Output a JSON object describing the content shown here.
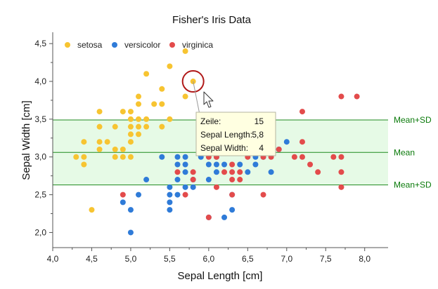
{
  "chart_data": {
    "type": "scatter",
    "title": "Fisher's Iris Data",
    "xlabel": "Sepal Length [cm]",
    "ylabel": "Sepal Width [cm]",
    "xlim": [
      4.0,
      8.3
    ],
    "ylim": [
      1.8,
      4.65
    ],
    "x_ticks": [
      "4,0",
      "4,5",
      "5,0",
      "5,5",
      "6,0",
      "6,5",
      "7,0",
      "7,5",
      "8,0"
    ],
    "x_tick_values": [
      4.0,
      4.5,
      5.0,
      5.5,
      6.0,
      6.5,
      7.0,
      7.5,
      8.0
    ],
    "y_ticks": [
      "2,0",
      "2,5",
      "3,0",
      "3,5",
      "4,0",
      "4,5"
    ],
    "y_tick_values": [
      2.0,
      2.5,
      3.0,
      3.5,
      4.0,
      4.5
    ],
    "grid": false,
    "legend_position": "top-left",
    "band": {
      "low": 2.63,
      "mean": 3.06,
      "high": 3.49,
      "fill": "#e6fae6",
      "line": "#1f8a1f"
    },
    "reference_lines": [
      {
        "label": "Mean+SD",
        "y": 3.49
      },
      {
        "label": "Mean",
        "y": 3.06
      },
      {
        "label": "Mean+SD",
        "y": 2.63
      }
    ],
    "series": [
      {
        "name": "setosa",
        "color": "#f7c431",
        "points": [
          [
            4.3,
            3.0
          ],
          [
            4.4,
            2.9
          ],
          [
            4.4,
            3.0
          ],
          [
            4.4,
            3.2
          ],
          [
            4.5,
            2.3
          ],
          [
            4.6,
            3.1
          ],
          [
            4.6,
            3.2
          ],
          [
            4.6,
            3.4
          ],
          [
            4.6,
            3.6
          ],
          [
            4.7,
            3.2
          ],
          [
            4.8,
            3.0
          ],
          [
            4.8,
            3.1
          ],
          [
            4.8,
            3.4
          ],
          [
            4.9,
            3.0
          ],
          [
            4.9,
            3.1
          ],
          [
            4.9,
            3.6
          ],
          [
            5.0,
            3.0
          ],
          [
            5.0,
            3.2
          ],
          [
            5.0,
            3.3
          ],
          [
            5.0,
            3.4
          ],
          [
            5.0,
            3.5
          ],
          [
            5.0,
            3.6
          ],
          [
            5.1,
            3.3
          ],
          [
            5.1,
            3.4
          ],
          [
            5.1,
            3.5
          ],
          [
            5.1,
            3.7
          ],
          [
            5.1,
            3.8
          ],
          [
            5.2,
            3.4
          ],
          [
            5.2,
            3.5
          ],
          [
            5.2,
            4.1
          ],
          [
            5.3,
            3.7
          ],
          [
            5.4,
            3.4
          ],
          [
            5.4,
            3.7
          ],
          [
            5.4,
            3.9
          ],
          [
            5.5,
            3.5
          ],
          [
            5.5,
            4.2
          ],
          [
            5.7,
            3.8
          ],
          [
            5.7,
            4.4
          ],
          [
            5.8,
            4.0
          ]
        ]
      },
      {
        "name": "versicolor",
        "color": "#2f7bd8",
        "points": [
          [
            4.9,
            2.4
          ],
          [
            5.0,
            2.0
          ],
          [
            5.0,
            2.3
          ],
          [
            5.1,
            2.5
          ],
          [
            5.2,
            2.7
          ],
          [
            5.4,
            3.0
          ],
          [
            5.5,
            2.3
          ],
          [
            5.5,
            2.4
          ],
          [
            5.5,
            2.5
          ],
          [
            5.5,
            2.6
          ],
          [
            5.6,
            2.5
          ],
          [
            5.6,
            2.7
          ],
          [
            5.6,
            2.9
          ],
          [
            5.6,
            3.0
          ],
          [
            5.7,
            2.6
          ],
          [
            5.7,
            2.8
          ],
          [
            5.7,
            2.9
          ],
          [
            5.7,
            3.0
          ],
          [
            5.8,
            2.6
          ],
          [
            5.8,
            2.7
          ],
          [
            5.9,
            3.0
          ],
          [
            5.9,
            3.2
          ],
          [
            6.0,
            2.2
          ],
          [
            6.0,
            2.7
          ],
          [
            6.0,
            2.9
          ],
          [
            6.0,
            3.4
          ],
          [
            6.1,
            2.8
          ],
          [
            6.1,
            2.9
          ],
          [
            6.1,
            3.0
          ],
          [
            6.2,
            2.2
          ],
          [
            6.2,
            2.9
          ],
          [
            6.3,
            2.3
          ],
          [
            6.3,
            2.5
          ],
          [
            6.3,
            3.3
          ],
          [
            6.4,
            2.9
          ],
          [
            6.4,
            3.2
          ],
          [
            6.5,
            2.8
          ],
          [
            6.6,
            2.9
          ],
          [
            6.6,
            3.0
          ],
          [
            6.7,
            3.0
          ],
          [
            6.7,
            3.1
          ],
          [
            6.8,
            2.8
          ],
          [
            6.9,
            3.1
          ],
          [
            7.0,
            3.2
          ]
        ]
      },
      {
        "name": "virginica",
        "color": "#e34b4b",
        "points": [
          [
            4.9,
            2.5
          ],
          [
            5.6,
            2.8
          ],
          [
            5.7,
            2.5
          ],
          [
            5.8,
            2.7
          ],
          [
            5.8,
            2.8
          ],
          [
            6.0,
            2.2
          ],
          [
            6.0,
            3.0
          ],
          [
            6.1,
            2.6
          ],
          [
            6.1,
            3.0
          ],
          [
            6.2,
            2.8
          ],
          [
            6.2,
            3.4
          ],
          [
            6.3,
            2.5
          ],
          [
            6.3,
            2.7
          ],
          [
            6.3,
            2.8
          ],
          [
            6.3,
            2.9
          ],
          [
            6.4,
            2.7
          ],
          [
            6.4,
            2.8
          ],
          [
            6.4,
            3.1
          ],
          [
            6.5,
            3.0
          ],
          [
            6.5,
            3.2
          ],
          [
            6.7,
            2.5
          ],
          [
            6.7,
            3.0
          ],
          [
            6.8,
            3.0
          ],
          [
            6.8,
            3.2
          ],
          [
            6.9,
            3.1
          ],
          [
            7.1,
            3.0
          ],
          [
            7.2,
            3.0
          ],
          [
            7.2,
            3.2
          ],
          [
            7.2,
            3.6
          ],
          [
            7.3,
            2.9
          ],
          [
            7.4,
            2.8
          ],
          [
            7.6,
            3.0
          ],
          [
            7.7,
            2.6
          ],
          [
            7.7,
            2.8
          ],
          [
            7.7,
            3.0
          ],
          [
            7.7,
            3.8
          ],
          [
            7.9,
            3.8
          ]
        ]
      }
    ],
    "highlight": {
      "x": 5.8,
      "y": 4.0,
      "ring_color": "#b01818"
    },
    "tooltip": {
      "rows": [
        {
          "label": "Zeile:",
          "value": "15"
        },
        {
          "label": "Sepal Length:",
          "value": "5,8"
        },
        {
          "label": "Sepal Width:",
          "value": "4"
        }
      ]
    }
  }
}
